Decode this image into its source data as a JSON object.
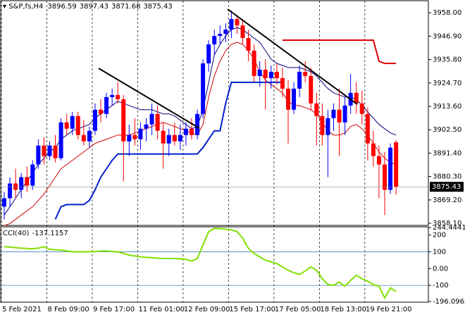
{
  "chart_data": [
    {
      "type": "candlestick",
      "title": "S&P,fs,H4",
      "categories": [
        "5 Feb 2021",
        null,
        null,
        null,
        null,
        null,
        null,
        null,
        "8 Feb 09:00",
        null,
        null,
        null,
        null,
        null,
        null,
        null,
        "9 Feb 17:00",
        null,
        null,
        null,
        null,
        null,
        null,
        null,
        "11 Feb 01:00",
        null,
        null,
        null,
        null,
        null,
        null,
        null,
        "12 Feb 09:00",
        null,
        null,
        null,
        null,
        null,
        null,
        null,
        "15 Feb 17:00",
        null,
        null,
        null,
        null,
        null,
        null,
        null,
        "17 Feb 05:00",
        null,
        null,
        null,
        null,
        null,
        null,
        null,
        "18 Feb 13:00",
        null,
        null,
        null,
        null,
        null,
        null,
        null,
        "19 Feb 21:00",
        null,
        null,
        null,
        null,
        null
      ],
      "open": [
        3866,
        3870,
        3877,
        3874,
        3880,
        3876,
        3886,
        3895,
        3890,
        3895,
        3889,
        3906,
        3903,
        3909,
        3900,
        3897,
        3902,
        3912,
        3910,
        3918,
        3919,
        3917,
        3897,
        3900,
        3898,
        3903,
        3905,
        3910,
        3902,
        3896,
        3900,
        3897,
        3900,
        3903,
        3900,
        3910,
        3934,
        3943,
        3947,
        3948,
        3950,
        3955,
        3952,
        3946,
        3940,
        3928,
        3931,
        3927,
        3930,
        3927,
        3922,
        3912,
        3922,
        3930,
        3928,
        3915,
        3909,
        3900,
        3908,
        3912,
        3906,
        3914,
        3920,
        3915,
        3910,
        3896,
        3890,
        3886,
        3874,
        3896.59
      ],
      "high": [
        3873,
        3880,
        3884,
        3882,
        3885,
        3888,
        3898,
        3899,
        3897,
        3900,
        3908,
        3910,
        3911,
        3911,
        3907,
        3904,
        3915,
        3917,
        3920,
        3922,
        3925,
        3919,
        3905,
        3908,
        3906,
        3908,
        3915,
        3914,
        3906,
        3903,
        3906,
        3905,
        3906,
        3908,
        3912,
        3936,
        3945,
        3950,
        3952,
        3953,
        3959,
        3957,
        3955,
        3950,
        3943,
        3935,
        3936,
        3933,
        3934,
        3932,
        3926,
        3925,
        3933,
        3935,
        3932,
        3920,
        3915,
        3912,
        3915,
        3922,
        3918,
        3929,
        3925,
        3921,
        3913,
        3902,
        3895,
        3892,
        3896,
        3897.43
      ],
      "low": [
        3860,
        3866,
        3870,
        3870,
        3873,
        3874,
        3884,
        3886,
        3888,
        3887,
        3888,
        3900,
        3900,
        3898,
        3895,
        3894,
        3900,
        3906,
        3908,
        3914,
        3915,
        3878,
        3890,
        3895,
        3893,
        3897,
        3900,
        3898,
        3884,
        3890,
        3895,
        3893,
        3895,
        3898,
        3898,
        3908,
        3930,
        3938,
        3943,
        3944,
        3946,
        3948,
        3943,
        3935,
        3925,
        3923,
        3912,
        3922,
        3924,
        3918,
        3896,
        3910,
        3918,
        3925,
        3912,
        3895,
        3895,
        3880,
        3902,
        3890,
        3900,
        3910,
        3910,
        3905,
        3888,
        3885,
        3870,
        3862,
        3872,
        3871.68
      ],
      "close": [
        3870,
        3877,
        3874,
        3880,
        3876,
        3886,
        3895,
        3890,
        3895,
        3889,
        3906,
        3903,
        3909,
        3900,
        3897,
        3902,
        3912,
        3910,
        3918,
        3919,
        3917,
        3897,
        3900,
        3898,
        3903,
        3905,
        3910,
        3902,
        3896,
        3900,
        3897,
        3900,
        3903,
        3900,
        3910,
        3934,
        3943,
        3947,
        3948,
        3950,
        3955,
        3952,
        3946,
        3940,
        3928,
        3931,
        3927,
        3930,
        3927,
        3922,
        3912,
        3922,
        3930,
        3928,
        3915,
        3909,
        3900,
        3908,
        3912,
        3906,
        3914,
        3920,
        3915,
        3910,
        3896,
        3890,
        3886,
        3874,
        3894,
        3875.43
      ],
      "up_color": "#0000ff",
      "down_color": "#ff0000",
      "overlays": [
        {
          "color": "#000080",
          "width": 1,
          "values": [
            3862,
            3866,
            3870,
            3874,
            3878,
            3882,
            3886,
            3889,
            3892,
            3894,
            3898,
            3900,
            3902,
            3903,
            3904,
            3905,
            3908,
            3910,
            3912,
            3914,
            3916,
            3915,
            3914,
            3913,
            3912,
            3912,
            3912,
            3911,
            3910,
            3910,
            3909,
            3907,
            3905,
            3903,
            3904,
            3912,
            3925,
            3938,
            3943,
            3947,
            3950,
            3951,
            3950,
            3948,
            3946,
            3944,
            3940,
            3936,
            3934,
            3933,
            3932,
            3932,
            3932,
            3931,
            3930,
            3928,
            3925,
            3922,
            3920,
            3919,
            3918,
            3918,
            3917,
            3914,
            3911,
            3908,
            3905,
            3903,
            3901,
            3900
          ]
        },
        {
          "color": "#d00000",
          "width": 1,
          "values": [
            3857,
            3858,
            3860,
            3862,
            3864,
            3866,
            3869,
            3872,
            3876,
            3880,
            3884,
            3886,
            3888,
            3890,
            3892,
            3894,
            3896,
            3897,
            3898,
            3899,
            3900,
            3900,
            3900,
            3901,
            3902,
            3903,
            3904,
            3905,
            3906,
            3905,
            3904,
            3903,
            3902,
            3901,
            3900,
            3905,
            3918,
            3928,
            3935,
            3940,
            3943,
            3944,
            3943,
            3940,
            3936,
            3930,
            3926,
            3924,
            3922,
            3920,
            3916,
            3914,
            3914,
            3913,
            3912,
            3910,
            3906,
            3902,
            3900,
            3900,
            3901,
            3904,
            3905,
            3903,
            3900,
            3896,
            3892,
            3889,
            3887,
            3886
          ]
        },
        {
          "color": "#0020d0",
          "width": 2,
          "values": [
            null,
            null,
            null,
            null,
            null,
            null,
            null,
            null,
            null,
            3860,
            3866,
            3867,
            3867,
            3867,
            3867,
            3869,
            3874,
            3880,
            3884,
            3888,
            3891,
            3891,
            3891,
            3891,
            3891,
            3891,
            3891,
            3891,
            3891,
            3891,
            3891,
            3891,
            3891,
            3891,
            3891,
            3894,
            3898,
            3902,
            3902,
            3915,
            3925,
            3925,
            3925,
            3925,
            3925,
            3925,
            3925,
            3925,
            3925,
            3925,
            null,
            null,
            null,
            null,
            null,
            null,
            null,
            null,
            null,
            null,
            null,
            null,
            null,
            null,
            null,
            null,
            null,
            null,
            null,
            null
          ]
        },
        {
          "color": "#e00000",
          "width": 2,
          "values": [
            null,
            null,
            null,
            null,
            null,
            null,
            null,
            null,
            null,
            null,
            null,
            null,
            null,
            null,
            null,
            null,
            null,
            null,
            null,
            null,
            null,
            null,
            null,
            null,
            null,
            null,
            null,
            null,
            null,
            null,
            null,
            null,
            null,
            null,
            null,
            null,
            null,
            null,
            null,
            null,
            null,
            null,
            null,
            null,
            null,
            null,
            null,
            null,
            null,
            3945,
            3945,
            3945,
            3945,
            3945,
            3945,
            3945,
            3945,
            3945,
            3945,
            3945,
            3945,
            3945,
            3945,
            3945,
            3945,
            3945,
            3935,
            3934,
            3934,
            3934
          ]
        }
      ],
      "ylim": [
        3857.1,
        3963.4
      ],
      "yticks": [
        {
          "value": 3958,
          "label": "3958.00"
        },
        {
          "value": 3946.9,
          "label": "3946.90"
        },
        {
          "value": 3935.8,
          "label": "3935.80"
        },
        {
          "value": 3924.7,
          "label": "3924.70"
        },
        {
          "value": 3913.6,
          "label": "3913.60"
        },
        {
          "value": 3902.5,
          "label": "3902.50"
        },
        {
          "value": 3891.4,
          "label": "3891.40"
        },
        {
          "value": 3880.3,
          "label": "3880.30"
        },
        {
          "value": 3869.2,
          "label": "3869.20"
        },
        {
          "value": 3858.1,
          "label": "3858.10"
        }
      ]
    },
    {
      "type": "line",
      "title": "CCI(40)",
      "color": "#7fe000",
      "values": [
        130,
        128,
        125,
        122,
        120,
        118,
        122,
        130,
        115,
        112,
        110,
        105,
        100,
        100,
        100,
        100,
        102,
        104,
        105,
        102,
        100,
        90,
        80,
        75,
        70,
        67,
        65,
        62,
        60,
        60,
        60,
        58,
        55,
        45,
        60,
        140,
        220,
        240,
        238,
        235,
        230,
        220,
        180,
        120,
        90,
        70,
        50,
        40,
        30,
        10,
        -10,
        -25,
        -35,
        -15,
        10,
        -10,
        -60,
        -95,
        -100,
        -80,
        -105,
        -70,
        -40,
        -60,
        -75,
        -95,
        -105,
        -175,
        -115,
        -137.1157
      ],
      "ylim": [
        -196.0968,
        244.4441
      ],
      "yticks": [
        244.4441,
        200,
        100,
        {
          "value": 0,
          "label": "0.00"
        },
        -100,
        -196.0968
      ],
      "levels": [
        100,
        -100
      ]
    }
  ]
}
